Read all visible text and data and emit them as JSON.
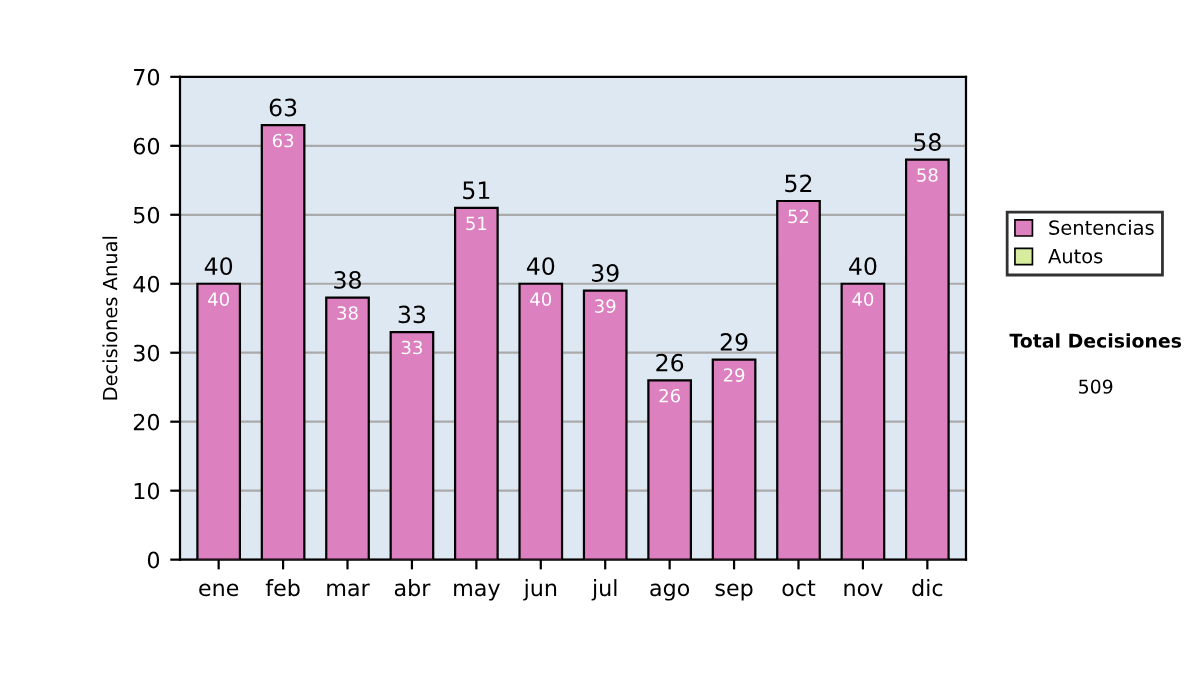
{
  "chart_data": {
    "type": "bar",
    "stacked": true,
    "ylabel": "Decisiones Anual",
    "categories": [
      "ene",
      "feb",
      "mar",
      "abr",
      "may",
      "jun",
      "jul",
      "ago",
      "sep",
      "oct",
      "nov",
      "dic"
    ],
    "series": [
      {
        "name": "Sentencias",
        "color": "#dd80c0",
        "values": [
          40,
          63,
          38,
          33,
          51,
          40,
          39,
          26,
          29,
          52,
          40,
          58
        ],
        "value_labels": [
          "40",
          "63",
          "38",
          "33",
          "51",
          "40",
          "39",
          "26",
          "29",
          "52",
          "40",
          "58"
        ]
      },
      {
        "name": "Autos",
        "color": "#d8eca0",
        "values": [
          null,
          null,
          null,
          null,
          null,
          null,
          null,
          null,
          null,
          null,
          null,
          null
        ]
      }
    ],
    "totals": [
      "40",
      "63",
      "38",
      "33",
      "51",
      "40",
      "39",
      "26",
      "29",
      "52",
      "40",
      "58"
    ],
    "ylim": [
      0,
      70
    ],
    "yticks": [
      0,
      10,
      20,
      30,
      40,
      50,
      60,
      70
    ],
    "grid": "y",
    "legend": "right",
    "annotations": [
      "Total Decisiones",
      "509"
    ]
  }
}
